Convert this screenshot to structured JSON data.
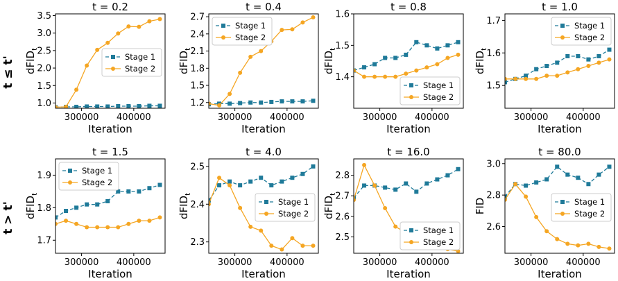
{
  "row_labels": [
    "t ≤ t'",
    "t > t'"
  ],
  "series_style": {
    "Stage 1": {
      "color": "#1f7a99",
      "marker": "square",
      "dash": true
    },
    "Stage 2": {
      "color": "#f5a623",
      "marker": "circle",
      "dash": false
    }
  },
  "chart_data": [
    {
      "type": "line",
      "title": "t = 0.2",
      "xlabel": "Iteration",
      "ylabel": "dFID",
      "ylabel_sub": "t",
      "xlim": [
        250000,
        460000
      ],
      "ylim": [
        0.85,
        3.55
      ],
      "xticks": [
        300000,
        400000
      ],
      "xtick_labels": [
        "300000",
        "400000"
      ],
      "yticks": [
        1.0,
        1.5,
        2.0,
        2.5,
        3.0,
        3.5
      ],
      "ytick_labels": [
        "1.0",
        "1.5",
        "2.0",
        "2.5",
        "3.0",
        "3.5"
      ],
      "legend": "center-right",
      "x": [
        250000,
        270000,
        290000,
        310000,
        330000,
        350000,
        370000,
        390000,
        410000,
        430000,
        450000
      ],
      "series": [
        {
          "name": "Stage 1",
          "values": [
            0.88,
            0.89,
            0.89,
            0.9,
            0.9,
            0.9,
            0.91,
            0.91,
            0.91,
            0.92,
            0.92
          ]
        },
        {
          "name": "Stage 2",
          "values": [
            0.88,
            0.89,
            1.38,
            2.07,
            2.52,
            2.72,
            2.99,
            3.19,
            3.18,
            3.34,
            3.4
          ]
        }
      ]
    },
    {
      "type": "line",
      "title": "t = 0.4",
      "xlabel": "Iteration",
      "ylabel": "dFID",
      "ylabel_sub": "t",
      "xlim": [
        250000,
        460000
      ],
      "ylim": [
        1.1,
        2.75
      ],
      "xticks": [
        300000,
        400000
      ],
      "xtick_labels": [
        "300000",
        "400000"
      ],
      "yticks": [
        1.2,
        1.5,
        1.8,
        2.1,
        2.4,
        2.7
      ],
      "ytick_labels": [
        "1.2",
        "1.5",
        "1.8",
        "2.1",
        "2.4",
        "2.7"
      ],
      "legend": "top-left",
      "x": [
        250000,
        270000,
        290000,
        310000,
        330000,
        350000,
        370000,
        390000,
        410000,
        430000,
        450000
      ],
      "series": [
        {
          "name": "Stage 1",
          "values": [
            1.17,
            1.18,
            1.18,
            1.19,
            1.2,
            1.2,
            1.21,
            1.22,
            1.22,
            1.22,
            1.23
          ]
        },
        {
          "name": "Stage 2",
          "values": [
            1.18,
            1.15,
            1.35,
            1.72,
            2.0,
            2.1,
            2.27,
            2.47,
            2.48,
            2.6,
            2.69
          ]
        }
      ]
    },
    {
      "type": "line",
      "title": "t = 0.8",
      "xlabel": "Iteration",
      "ylabel": "dFID",
      "ylabel_sub": "t",
      "xlim": [
        250000,
        460000
      ],
      "ylim": [
        1.3,
        1.6
      ],
      "xticks": [
        300000,
        400000
      ],
      "xtick_labels": [
        "300000",
        "400000"
      ],
      "yticks": [
        1.4,
        1.5,
        1.6
      ],
      "ytick_labels": [
        "1.4",
        "1.5",
        "1.6"
      ],
      "legend": "bottom-right",
      "x": [
        250000,
        270000,
        290000,
        310000,
        330000,
        350000,
        370000,
        390000,
        410000,
        430000,
        450000
      ],
      "series": [
        {
          "name": "Stage 1",
          "values": [
            1.42,
            1.43,
            1.44,
            1.46,
            1.46,
            1.47,
            1.51,
            1.5,
            1.49,
            1.5,
            1.51
          ]
        },
        {
          "name": "Stage 2",
          "values": [
            1.42,
            1.4,
            1.4,
            1.4,
            1.4,
            1.41,
            1.42,
            1.43,
            1.44,
            1.46,
            1.47
          ]
        }
      ]
    },
    {
      "type": "line",
      "title": "t = 1.0",
      "xlabel": "Iteration",
      "ylabel": "dFID",
      "ylabel_sub": "t",
      "xlim": [
        250000,
        460000
      ],
      "ylim": [
        1.43,
        1.72
      ],
      "xticks": [
        300000,
        400000
      ],
      "xtick_labels": [
        "300000",
        "400000"
      ],
      "yticks": [
        1.5,
        1.6,
        1.7
      ],
      "ytick_labels": [
        "1.5",
        "1.6",
        "1.7"
      ],
      "legend": "top-right",
      "x": [
        250000,
        270000,
        290000,
        310000,
        330000,
        350000,
        370000,
        390000,
        410000,
        430000,
        450000
      ],
      "series": [
        {
          "name": "Stage 1",
          "values": [
            1.51,
            1.52,
            1.53,
            1.55,
            1.56,
            1.57,
            1.59,
            1.59,
            1.58,
            1.59,
            1.61
          ]
        },
        {
          "name": "Stage 2",
          "values": [
            1.52,
            1.52,
            1.52,
            1.52,
            1.53,
            1.53,
            1.54,
            1.55,
            1.56,
            1.57,
            1.58
          ]
        }
      ]
    },
    {
      "type": "line",
      "title": "t = 1.5",
      "xlabel": "Iteration",
      "ylabel": "dFID",
      "ylabel_sub": "t",
      "xlim": [
        250000,
        460000
      ],
      "ylim": [
        1.66,
        1.95
      ],
      "xticks": [
        300000,
        400000
      ],
      "xtick_labels": [
        "300000",
        "400000"
      ],
      "yticks": [
        1.7,
        1.8,
        1.9
      ],
      "ytick_labels": [
        "1.7",
        "1.8",
        "1.9"
      ],
      "legend": "top-left",
      "x": [
        250000,
        270000,
        290000,
        310000,
        330000,
        350000,
        370000,
        390000,
        410000,
        430000,
        450000
      ],
      "series": [
        {
          "name": "Stage 1",
          "values": [
            1.77,
            1.79,
            1.8,
            1.81,
            1.81,
            1.82,
            1.85,
            1.85,
            1.85,
            1.86,
            1.87
          ]
        },
        {
          "name": "Stage 2",
          "values": [
            1.75,
            1.76,
            1.75,
            1.74,
            1.74,
            1.74,
            1.74,
            1.75,
            1.76,
            1.76,
            1.77
          ]
        }
      ]
    },
    {
      "type": "line",
      "title": "t = 4.0",
      "xlabel": "Iteration",
      "ylabel": "dFID",
      "ylabel_sub": "t",
      "xlim": [
        250000,
        460000
      ],
      "ylim": [
        2.27,
        2.52
      ],
      "xticks": [
        300000,
        400000
      ],
      "xtick_labels": [
        "300000",
        "400000"
      ],
      "yticks": [
        2.3,
        2.4,
        2.5
      ],
      "ytick_labels": [
        "2.3",
        "2.4",
        "2.5"
      ],
      "legend": "center-right",
      "x": [
        250000,
        270000,
        290000,
        310000,
        330000,
        350000,
        370000,
        390000,
        410000,
        430000,
        450000
      ],
      "series": [
        {
          "name": "Stage 1",
          "values": [
            2.41,
            2.45,
            2.46,
            2.45,
            2.46,
            2.47,
            2.45,
            2.46,
            2.47,
            2.48,
            2.5
          ]
        },
        {
          "name": "Stage 2",
          "values": [
            2.4,
            2.47,
            2.45,
            2.39,
            2.34,
            2.33,
            2.29,
            2.28,
            2.31,
            2.29,
            2.29
          ]
        }
      ]
    },
    {
      "type": "line",
      "title": "t = 16.0",
      "xlabel": "Iteration",
      "ylabel": "dFID",
      "ylabel_sub": "t",
      "xlim": [
        250000,
        460000
      ],
      "ylim": [
        2.42,
        2.88
      ],
      "xticks": [
        300000,
        400000
      ],
      "xtick_labels": [
        "300000",
        "400000"
      ],
      "yticks": [
        2.5,
        2.6,
        2.7,
        2.8
      ],
      "ytick_labels": [
        "2.5",
        "2.6",
        "2.7",
        "2.8"
      ],
      "legend": "bottom-right",
      "x": [
        250000,
        270000,
        290000,
        310000,
        330000,
        350000,
        370000,
        390000,
        410000,
        430000,
        450000
      ],
      "series": [
        {
          "name": "Stage 1",
          "values": [
            2.69,
            2.75,
            2.75,
            2.74,
            2.73,
            2.76,
            2.72,
            2.76,
            2.78,
            2.8,
            2.83
          ]
        },
        {
          "name": "Stage 2",
          "values": [
            2.68,
            2.85,
            2.75,
            2.64,
            2.55,
            2.52,
            2.47,
            2.46,
            2.45,
            2.44,
            2.43
          ]
        }
      ]
    },
    {
      "type": "line",
      "title": "t = 80.0",
      "xlabel": "Iteration",
      "ylabel": "FID",
      "ylabel_sub": "",
      "xlim": [
        250000,
        460000
      ],
      "ylim": [
        2.43,
        3.03
      ],
      "xticks": [
        300000,
        400000
      ],
      "xtick_labels": [
        "300000",
        "400000"
      ],
      "yticks": [
        2.6,
        2.8,
        3.0
      ],
      "ytick_labels": [
        "2.6",
        "2.8",
        "3.0"
      ],
      "legend": "center-right",
      "x": [
        250000,
        270000,
        290000,
        310000,
        330000,
        350000,
        370000,
        390000,
        410000,
        430000,
        450000
      ],
      "series": [
        {
          "name": "Stage 1",
          "values": [
            2.79,
            2.87,
            2.86,
            2.88,
            2.9,
            2.98,
            2.93,
            2.91,
            2.87,
            2.93,
            2.98
          ]
        },
        {
          "name": "Stage 2",
          "values": [
            2.77,
            2.87,
            2.79,
            2.66,
            2.57,
            2.52,
            2.49,
            2.48,
            2.49,
            2.47,
            2.46
          ]
        }
      ]
    }
  ]
}
